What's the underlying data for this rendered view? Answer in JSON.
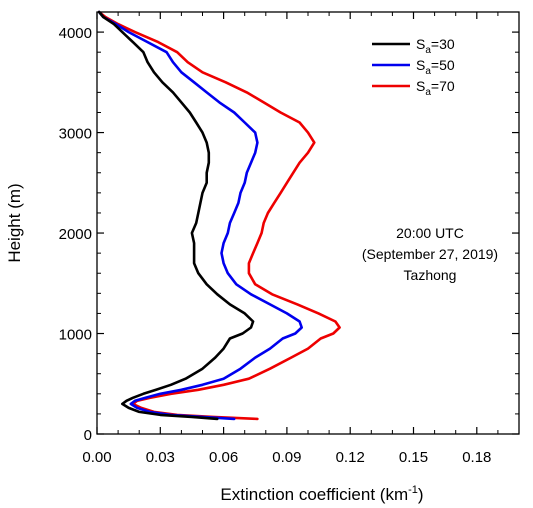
{
  "chart_data": {
    "type": "line",
    "xlabel": "Extinction coefficient (km",
    "xlabel_sup": "-1",
    "xlabel_suffix": ")",
    "ylabel": "Height (m)",
    "xlim": [
      0,
      0.2
    ],
    "ylim": [
      0,
      4200
    ],
    "xticks": [
      "0.00",
      "0.03",
      "0.06",
      "0.09",
      "0.12",
      "0.15",
      "0.18"
    ],
    "yticks": [
      "0",
      "1000",
      "2000",
      "3000",
      "4000"
    ],
    "legend_position": "top-right",
    "annotation": [
      "20:00 UTC",
      "(September 27, 2019)",
      "Tazhong"
    ],
    "series": [
      {
        "name": "S",
        "name_sub": "a",
        "name_suffix": "=30",
        "color": "#000000",
        "points": [
          [
            0.057,
            150
          ],
          [
            0.045,
            170
          ],
          [
            0.03,
            190
          ],
          [
            0.02,
            220
          ],
          [
            0.015,
            260
          ],
          [
            0.012,
            300
          ],
          [
            0.014,
            330
          ],
          [
            0.017,
            360
          ],
          [
            0.022,
            400
          ],
          [
            0.028,
            440
          ],
          [
            0.035,
            490
          ],
          [
            0.042,
            550
          ],
          [
            0.05,
            650
          ],
          [
            0.056,
            760
          ],
          [
            0.06,
            850
          ],
          [
            0.063,
            950
          ],
          [
            0.069,
            1000
          ],
          [
            0.073,
            1060
          ],
          [
            0.074,
            1120
          ],
          [
            0.07,
            1200
          ],
          [
            0.063,
            1290
          ],
          [
            0.057,
            1390
          ],
          [
            0.052,
            1490
          ],
          [
            0.048,
            1600
          ],
          [
            0.046,
            1700
          ],
          [
            0.046,
            1800
          ],
          [
            0.046,
            1900
          ],
          [
            0.045,
            2000
          ],
          [
            0.047,
            2100
          ],
          [
            0.048,
            2200
          ],
          [
            0.049,
            2300
          ],
          [
            0.05,
            2400
          ],
          [
            0.052,
            2500
          ],
          [
            0.052,
            2600
          ],
          [
            0.053,
            2700
          ],
          [
            0.053,
            2800
          ],
          [
            0.052,
            2900
          ],
          [
            0.05,
            3000
          ],
          [
            0.047,
            3100
          ],
          [
            0.044,
            3200
          ],
          [
            0.04,
            3300
          ],
          [
            0.036,
            3400
          ],
          [
            0.031,
            3500
          ],
          [
            0.027,
            3600
          ],
          [
            0.024,
            3700
          ],
          [
            0.022,
            3800
          ],
          [
            0.017,
            3900
          ],
          [
            0.012,
            4000
          ],
          [
            0.008,
            4080
          ],
          [
            0.003,
            4150
          ],
          [
            0.001,
            4200
          ]
        ]
      },
      {
        "name": "S",
        "name_sub": "a",
        "name_suffix": "=50",
        "color": "#0000ee",
        "points": [
          [
            0.065,
            150
          ],
          [
            0.05,
            170
          ],
          [
            0.035,
            190
          ],
          [
            0.025,
            220
          ],
          [
            0.019,
            260
          ],
          [
            0.016,
            300
          ],
          [
            0.018,
            330
          ],
          [
            0.023,
            360
          ],
          [
            0.03,
            400
          ],
          [
            0.04,
            440
          ],
          [
            0.05,
            490
          ],
          [
            0.06,
            550
          ],
          [
            0.068,
            650
          ],
          [
            0.075,
            760
          ],
          [
            0.082,
            850
          ],
          [
            0.088,
            950
          ],
          [
            0.094,
            1000
          ],
          [
            0.097,
            1060
          ],
          [
            0.096,
            1120
          ],
          [
            0.09,
            1200
          ],
          [
            0.082,
            1290
          ],
          [
            0.073,
            1390
          ],
          [
            0.066,
            1490
          ],
          [
            0.062,
            1600
          ],
          [
            0.06,
            1700
          ],
          [
            0.059,
            1800
          ],
          [
            0.06,
            1900
          ],
          [
            0.062,
            2000
          ],
          [
            0.063,
            2100
          ],
          [
            0.065,
            2200
          ],
          [
            0.067,
            2300
          ],
          [
            0.068,
            2400
          ],
          [
            0.07,
            2500
          ],
          [
            0.071,
            2600
          ],
          [
            0.073,
            2700
          ],
          [
            0.075,
            2800
          ],
          [
            0.076,
            2900
          ],
          [
            0.075,
            3000
          ],
          [
            0.07,
            3100
          ],
          [
            0.065,
            3200
          ],
          [
            0.058,
            3300
          ],
          [
            0.052,
            3400
          ],
          [
            0.046,
            3500
          ],
          [
            0.04,
            3600
          ],
          [
            0.036,
            3700
          ],
          [
            0.033,
            3800
          ],
          [
            0.024,
            3900
          ],
          [
            0.015,
            4000
          ],
          [
            0.009,
            4080
          ],
          [
            0.003,
            4150
          ],
          [
            0.001,
            4200
          ]
        ]
      },
      {
        "name": "S",
        "name_sub": "a",
        "name_suffix": "=70",
        "color": "#ee0000",
        "points": [
          [
            0.076,
            150
          ],
          [
            0.055,
            170
          ],
          [
            0.038,
            190
          ],
          [
            0.027,
            220
          ],
          [
            0.021,
            260
          ],
          [
            0.017,
            300
          ],
          [
            0.019,
            330
          ],
          [
            0.025,
            360
          ],
          [
            0.035,
            400
          ],
          [
            0.048,
            440
          ],
          [
            0.06,
            490
          ],
          [
            0.072,
            550
          ],
          [
            0.082,
            650
          ],
          [
            0.092,
            760
          ],
          [
            0.1,
            850
          ],
          [
            0.106,
            950
          ],
          [
            0.112,
            1000
          ],
          [
            0.115,
            1060
          ],
          [
            0.113,
            1120
          ],
          [
            0.105,
            1200
          ],
          [
            0.095,
            1290
          ],
          [
            0.083,
            1390
          ],
          [
            0.075,
            1490
          ],
          [
            0.072,
            1600
          ],
          [
            0.072,
            1700
          ],
          [
            0.074,
            1800
          ],
          [
            0.076,
            1900
          ],
          [
            0.078,
            2000
          ],
          [
            0.079,
            2100
          ],
          [
            0.081,
            2200
          ],
          [
            0.084,
            2300
          ],
          [
            0.087,
            2400
          ],
          [
            0.09,
            2500
          ],
          [
            0.093,
            2600
          ],
          [
            0.096,
            2700
          ],
          [
            0.1,
            2800
          ],
          [
            0.103,
            2900
          ],
          [
            0.1,
            3000
          ],
          [
            0.096,
            3100
          ],
          [
            0.087,
            3200
          ],
          [
            0.079,
            3300
          ],
          [
            0.071,
            3400
          ],
          [
            0.061,
            3500
          ],
          [
            0.05,
            3600
          ],
          [
            0.043,
            3700
          ],
          [
            0.038,
            3800
          ],
          [
            0.029,
            3900
          ],
          [
            0.018,
            4000
          ],
          [
            0.01,
            4080
          ],
          [
            0.004,
            4150
          ],
          [
            0.001,
            4200
          ]
        ]
      }
    ]
  }
}
